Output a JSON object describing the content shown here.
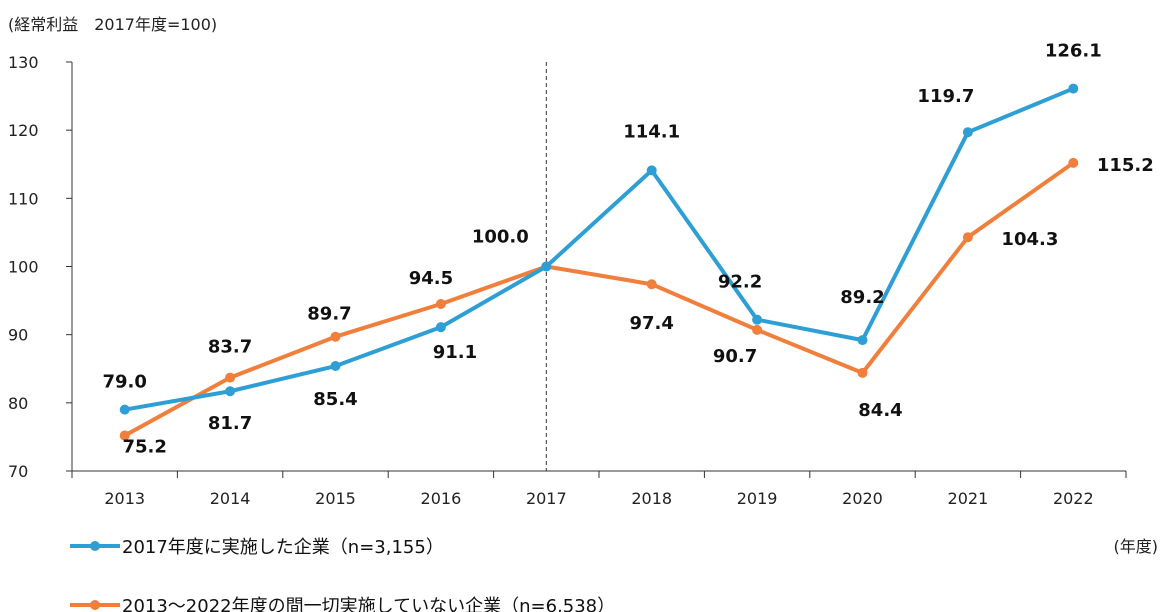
{
  "chart_data": {
    "type": "line",
    "title": "(経常利益　2017年度=100)",
    "xlabel": "(年度)",
    "ylabel": "",
    "categories": [
      "2013",
      "2014",
      "2015",
      "2016",
      "2017",
      "2018",
      "2019",
      "2020",
      "2021",
      "2022"
    ],
    "ylim": [
      70,
      130
    ],
    "yticks": [
      70,
      80,
      90,
      100,
      110,
      120,
      130
    ],
    "grid": false,
    "reference_line": {
      "x": "2017",
      "style": "dashed"
    },
    "legend_position": "bottom",
    "series": [
      {
        "name": "2017年度に実施した企業（n=3,155）",
        "color": "#2e9fd4",
        "values": [
          79.0,
          81.7,
          85.4,
          91.1,
          100.0,
          114.1,
          92.2,
          89.2,
          119.7,
          126.1
        ],
        "labels": [
          "79.0",
          "81.7",
          "85.4",
          "91.1",
          "100.0",
          "114.1",
          "92.2",
          "89.2",
          "119.7",
          "126.1"
        ]
      },
      {
        "name": "2013～2022年度の間一切実施していない企業（n=6,538）",
        "color": "#f07f3c",
        "values": [
          75.2,
          83.7,
          89.7,
          94.5,
          100.0,
          97.4,
          90.7,
          84.4,
          104.3,
          115.2
        ],
        "labels": [
          "75.2",
          "83.7",
          "89.7",
          "94.5",
          "",
          "97.4",
          "90.7",
          "84.4",
          "104.3",
          "115.2"
        ]
      }
    ]
  }
}
